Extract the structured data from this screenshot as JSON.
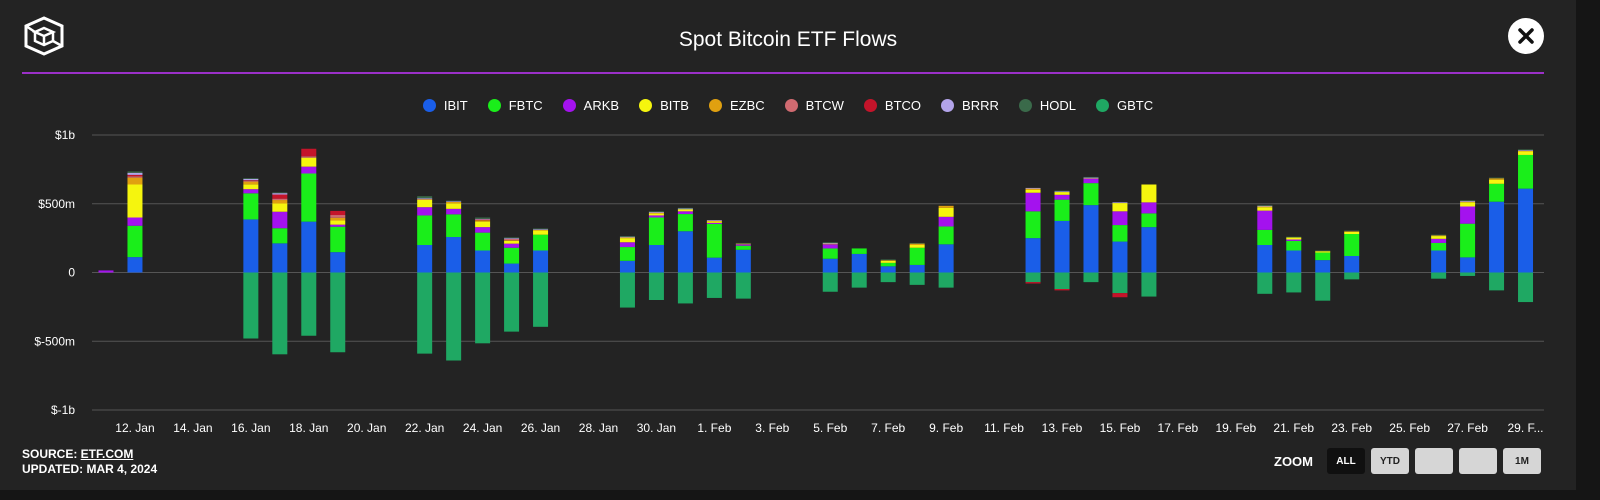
{
  "header": {
    "title": "Spot Bitcoin ETF Flows"
  },
  "footer": {
    "source_label": "SOURCE: ",
    "source_link": "ETF.COM",
    "updated": "UPDATED: MAR 4, 2024"
  },
  "zoom": {
    "label": "ZOOM",
    "buttons": [
      "ALL",
      "YTD",
      "",
      "",
      "1M"
    ],
    "active": "ALL"
  },
  "colors": {
    "background": "#232323",
    "accent": "#9b30c8"
  },
  "chart_data": {
    "type": "bar",
    "stacked": true,
    "title": "Spot Bitcoin ETF Flows",
    "y_ticks": [
      "$1b",
      "$500m",
      "0",
      "$-500m",
      "$-1b"
    ],
    "y_tick_values": [
      1000,
      500,
      0,
      -500,
      -1000
    ],
    "ylim": [
      -1000,
      1000
    ],
    "x_ticks": [
      "12. Jan",
      "14. Jan",
      "16. Jan",
      "18. Jan",
      "20. Jan",
      "22. Jan",
      "24. Jan",
      "26. Jan",
      "28. Jan",
      "30. Jan",
      "1. Feb",
      "3. Feb",
      "5. Feb",
      "7. Feb",
      "9. Feb",
      "11. Feb",
      "13. Feb",
      "15. Feb",
      "17. Feb",
      "19. Feb",
      "21. Feb",
      "23. Feb",
      "25. Feb",
      "27. Feb",
      "29. F..."
    ],
    "grid": true,
    "legend_position": "top-center",
    "series_names": [
      "IBIT",
      "FBTC",
      "ARKB",
      "BITB",
      "EZBC",
      "BTCW",
      "BTCO",
      "BRRR",
      "HODL",
      "GBTC"
    ],
    "series_colors": [
      "#1a5ee8",
      "#1aee1a",
      "#a412ee",
      "#f5f50e",
      "#e0a010",
      "#d06a70",
      "#c4142a",
      "#b3a4ea",
      "#3a6a4a",
      "#1fa863"
    ],
    "categories": [
      "11. Jan",
      "12. Jan",
      "16. Jan",
      "17. Jan",
      "18. Jan",
      "19. Jan",
      "22. Jan",
      "23. Jan",
      "24. Jan",
      "25. Jan",
      "26. Jan",
      "29. Jan",
      "30. Jan",
      "31. Jan",
      "1. Feb",
      "2. Feb",
      "5. Feb",
      "6. Feb",
      "7. Feb",
      "8. Feb",
      "9. Feb",
      "12. Feb",
      "13. Feb",
      "14. Feb",
      "15. Feb",
      "16. Feb",
      "20. Feb",
      "21. Feb",
      "22. Feb",
      "23. Feb",
      "26. Feb",
      "27. Feb",
      "28. Feb",
      "29. Feb"
    ],
    "series": [
      {
        "name": "IBIT",
        "values": [
          0,
          112,
          386,
          212,
          370,
          148,
          200,
          258,
          160,
          65,
          160,
          85,
          200,
          300,
          108,
          165,
          100,
          135,
          45,
          55,
          205,
          250,
          375,
          490,
          225,
          330,
          200,
          160,
          90,
          120,
          160,
          110,
          515,
          610
        ]
      },
      {
        "name": "FBTC",
        "values": [
          0,
          228,
          190,
          110,
          350,
          185,
          215,
          165,
          130,
          115,
          115,
          100,
          200,
          125,
          245,
          30,
          75,
          40,
          25,
          125,
          130,
          195,
          155,
          160,
          120,
          100,
          110,
          70,
          55,
          160,
          55,
          245,
          130,
          245
        ]
      },
      {
        "name": "ARKB",
        "values": [
          15,
          60,
          30,
          120,
          50,
          15,
          60,
          40,
          40,
          30,
          0,
          35,
          15,
          20,
          8,
          10,
          30,
          0,
          0,
          0,
          70,
          135,
          35,
          30,
          100,
          80,
          140,
          10,
          0,
          0,
          30,
          125,
          0,
          0
        ]
      },
      {
        "name": "BITB",
        "values": [
          0,
          240,
          35,
          60,
          65,
          30,
          55,
          40,
          40,
          20,
          30,
          30,
          15,
          15,
          10,
          0,
          0,
          0,
          15,
          20,
          65,
          20,
          20,
          0,
          60,
          130,
          25,
          15,
          10,
          15,
          20,
          30,
          30,
          25
        ]
      },
      {
        "name": "EZBC",
        "values": [
          0,
          50,
          20,
          25,
          0,
          20,
          0,
          10,
          10,
          5,
          5,
          5,
          5,
          0,
          5,
          5,
          5,
          0,
          5,
          10,
          15,
          10,
          0,
          0,
          0,
          0,
          5,
          0,
          0,
          5,
          5,
          5,
          10,
          5
        ]
      },
      {
        "name": "BTCW",
        "values": [
          0,
          10,
          5,
          10,
          10,
          20,
          5,
          0,
          0,
          10,
          0,
          0,
          0,
          0,
          0,
          0,
          0,
          0,
          0,
          0,
          0,
          0,
          0,
          5,
          0,
          0,
          0,
          0,
          0,
          0,
          0,
          0,
          0,
          0
        ]
      },
      {
        "name": "BTCO",
        "values": [
          0,
          10,
          5,
          30,
          55,
          30,
          0,
          0,
          5,
          0,
          0,
          0,
          0,
          0,
          0,
          0,
          0,
          0,
          0,
          0,
          0,
          0,
          0,
          0,
          0,
          0,
          0,
          0,
          0,
          0,
          0,
          0,
          0,
          0
        ]
      },
      {
        "name": "BRRR",
        "values": [
          0,
          15,
          10,
          10,
          0,
          0,
          5,
          5,
          5,
          5,
          5,
          5,
          5,
          5,
          5,
          0,
          5,
          0,
          0,
          0,
          0,
          5,
          5,
          5,
          5,
          0,
          5,
          0,
          0,
          0,
          0,
          5,
          0,
          5
        ]
      },
      {
        "name": "HODL",
        "values": [
          0,
          10,
          5,
          5,
          0,
          0,
          15,
          5,
          10,
          5,
          5,
          5,
          5,
          5,
          0,
          5,
          5,
          0,
          5,
          5,
          0,
          0,
          5,
          5,
          0,
          0,
          5,
          5,
          5,
          5,
          5,
          5,
          5,
          5
        ]
      },
      {
        "name": "GBTC",
        "values": [
          0,
          0,
          -480,
          -595,
          -460,
          -580,
          -590,
          -640,
          -515,
          -430,
          -395,
          -255,
          -200,
          -225,
          -185,
          -190,
          -140,
          -110,
          -70,
          -90,
          -110,
          -70,
          -120,
          -70,
          -150,
          -175,
          -155,
          -145,
          -205,
          -50,
          -45,
          -25,
          -130,
          -215
        ]
      }
    ],
    "negative_marks": [
      {
        "series": "BTCO",
        "category": "12. Feb",
        "value": -10
      },
      {
        "series": "BTCO",
        "category": "13. Feb",
        "value": -10
      },
      {
        "series": "BTCO",
        "category": "15. Feb",
        "value": -30
      }
    ]
  }
}
